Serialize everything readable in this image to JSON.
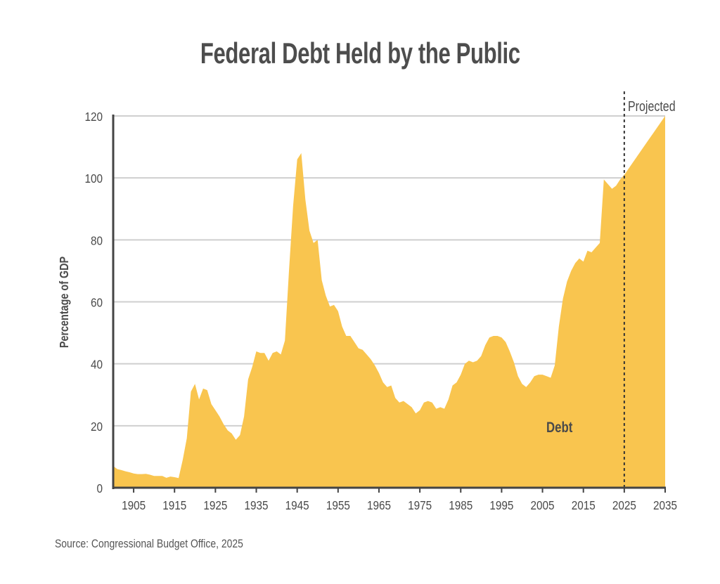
{
  "chart_data": {
    "type": "area",
    "title": "Federal Debt Held by the Public",
    "ylabel": "Percentage of GDP",
    "xlabel": "",
    "source": "Source: Congressional Budget Office, 2025",
    "series_label": "Debt",
    "projection_label": "Projected",
    "projection_start": 2025,
    "xlim": [
      1900,
      2035
    ],
    "ylim": [
      0,
      120
    ],
    "grid": true,
    "x_ticks": [
      1905,
      1915,
      1925,
      1935,
      1945,
      1955,
      1965,
      1975,
      1985,
      1995,
      2005,
      2015,
      2025,
      2035
    ],
    "y_ticks": [
      0,
      20,
      40,
      60,
      80,
      100,
      120
    ],
    "fill_color": "#F9C54F",
    "x": [
      1900,
      1901,
      1902,
      1903,
      1904,
      1905,
      1906,
      1907,
      1908,
      1909,
      1910,
      1911,
      1912,
      1913,
      1914,
      1915,
      1916,
      1917,
      1918,
      1919,
      1920,
      1921,
      1922,
      1923,
      1924,
      1925,
      1926,
      1927,
      1928,
      1929,
      1930,
      1931,
      1932,
      1933,
      1934,
      1935,
      1936,
      1937,
      1938,
      1939,
      1940,
      1941,
      1942,
      1943,
      1944,
      1945,
      1946,
      1947,
      1948,
      1949,
      1950,
      1951,
      1952,
      1953,
      1954,
      1955,
      1956,
      1957,
      1958,
      1959,
      1960,
      1961,
      1962,
      1963,
      1964,
      1965,
      1966,
      1967,
      1968,
      1969,
      1970,
      1971,
      1972,
      1973,
      1974,
      1975,
      1976,
      1977,
      1978,
      1979,
      1980,
      1981,
      1982,
      1983,
      1984,
      1985,
      1986,
      1987,
      1988,
      1989,
      1990,
      1991,
      1992,
      1993,
      1994,
      1995,
      1996,
      1997,
      1998,
      1999,
      2000,
      2001,
      2002,
      2003,
      2004,
      2005,
      2006,
      2007,
      2008,
      2009,
      2010,
      2011,
      2012,
      2013,
      2014,
      2015,
      2016,
      2017,
      2018,
      2019,
      2020,
      2021,
      2022,
      2023,
      2024,
      2025,
      2026,
      2027,
      2028,
      2029,
      2030,
      2031,
      2032,
      2033,
      2034,
      2035
    ],
    "values": [
      7,
      6,
      5.7,
      5.3,
      5,
      4.6,
      4.4,
      4.4,
      4.5,
      4.2,
      3.8,
      3.8,
      3.8,
      3.2,
      3.6,
      3.4,
      3.1,
      9,
      16,
      31,
      33.5,
      28.5,
      32,
      31.5,
      27,
      25,
      23,
      20.5,
      18.5,
      17.5,
      15.5,
      17,
      23,
      35,
      39,
      44,
      43.5,
      43.5,
      41,
      43.5,
      44,
      43,
      47.5,
      70,
      91,
      106,
      108,
      93,
      83,
      79,
      80,
      67,
      62,
      58.5,
      59,
      57,
      52,
      49,
      49,
      47,
      45,
      44.5,
      43,
      41.5,
      39.5,
      37,
      34,
      32.5,
      33,
      29,
      27.5,
      28,
      27,
      26,
      24,
      25,
      27.5,
      28,
      27.5,
      25.5,
      26,
      25.5,
      28.5,
      33,
      34,
      36.5,
      40,
      41,
      40.5,
      41,
      42.5,
      46,
      48.5,
      49,
      49,
      48.5,
      47,
      44,
      40.5,
      36,
      33.5,
      32.5,
      34,
      36,
      36.5,
      36.5,
      36,
      35.5,
      39.5,
      52,
      61,
      66.5,
      70,
      72.5,
      74,
      73,
      76.5,
      76,
      77.5,
      79,
      99.5,
      98,
      96.5,
      97.5,
      99.5,
      101,
      102.9,
      104.8,
      106.7,
      108.6,
      110.5,
      112.4,
      114.3,
      116.2,
      118.1,
      120
    ]
  }
}
